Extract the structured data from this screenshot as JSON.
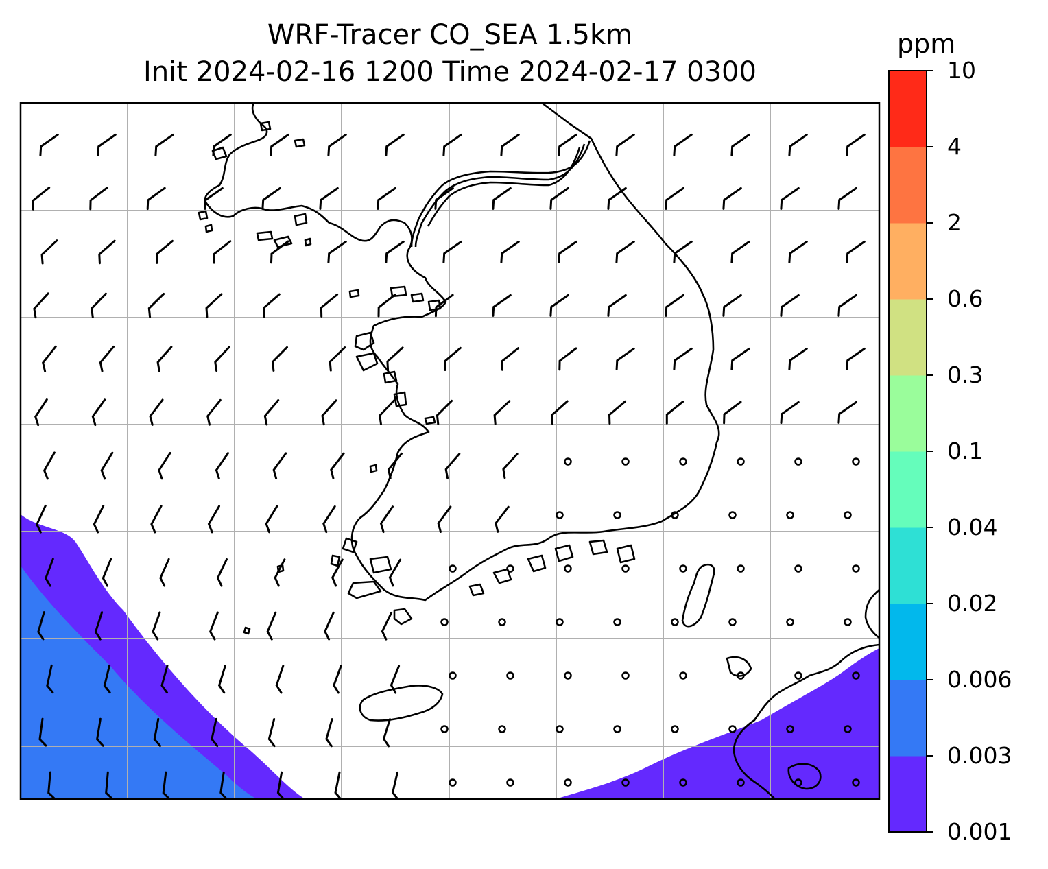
{
  "title": {
    "line1": "WRF-Tracer CO_SEA 1.5km",
    "line2": "Init 2024-02-16 1200 Time 2024-02-17 0300"
  },
  "colorbar": {
    "unit": "ppm",
    "levels": [
      "0.001",
      "0.003",
      "0.006",
      "0.02",
      "0.04",
      "0.1",
      "0.3",
      "0.6",
      "2",
      "4",
      "10"
    ],
    "colors": [
      "#6429fe",
      "#3479f5",
      "#02b8ec",
      "#2ee0d5",
      "#65fdbb",
      "#9afd9b",
      "#d0e182",
      "#ffaf61",
      "#fe7441",
      "#ff2a18"
    ]
  },
  "map": {
    "outline_color": "#000000",
    "gridline_color": "#b0b0b0",
    "coastline_color": "#000000",
    "wind_barb_color": "#000000",
    "calm_marker": "circle"
  }
}
